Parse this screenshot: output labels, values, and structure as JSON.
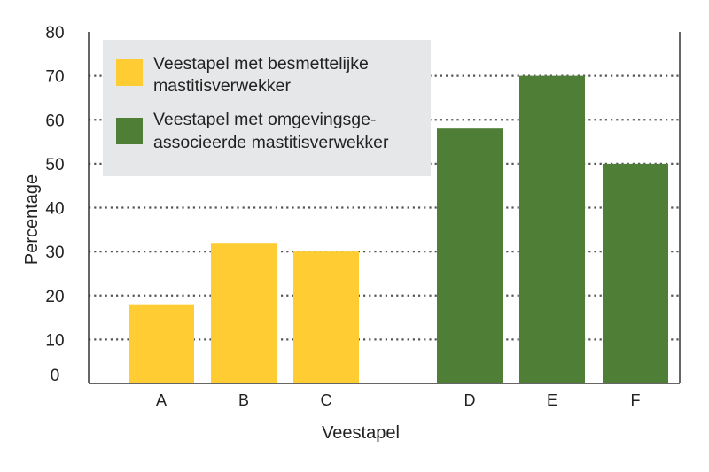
{
  "chart_data": {
    "type": "bar",
    "title": "",
    "xlabel": "Veestapel",
    "ylabel": "Percentage",
    "ylim": [
      0,
      80
    ],
    "yticks": [
      0,
      10,
      20,
      30,
      40,
      50,
      60,
      70,
      80
    ],
    "grid": "horizontal dotted",
    "legend_position": "top-left",
    "series": [
      {
        "name": "Veestapel met besmettelijke mastitisverwekker",
        "legend_lines": [
          "Veestapel met besmettelijke",
          "mastitisverwekker"
        ],
        "color": "#FFCC33",
        "categories": [
          "A",
          "B",
          "C"
        ],
        "values": [
          18,
          32,
          30
        ]
      },
      {
        "name": "Veestapel met omgevingsgeassocieerde mastitisverwekker",
        "legend_lines": [
          "Veestapel met omgevingsge-",
          "associeerde mastitisverwekker"
        ],
        "color": "#4F7F37",
        "categories": [
          "D",
          "E",
          "F"
        ],
        "values": [
          58,
          70,
          50
        ]
      }
    ]
  },
  "colors": {
    "legend_background": "#E6E7E8",
    "axis": "#333333",
    "grid": "#555555"
  }
}
